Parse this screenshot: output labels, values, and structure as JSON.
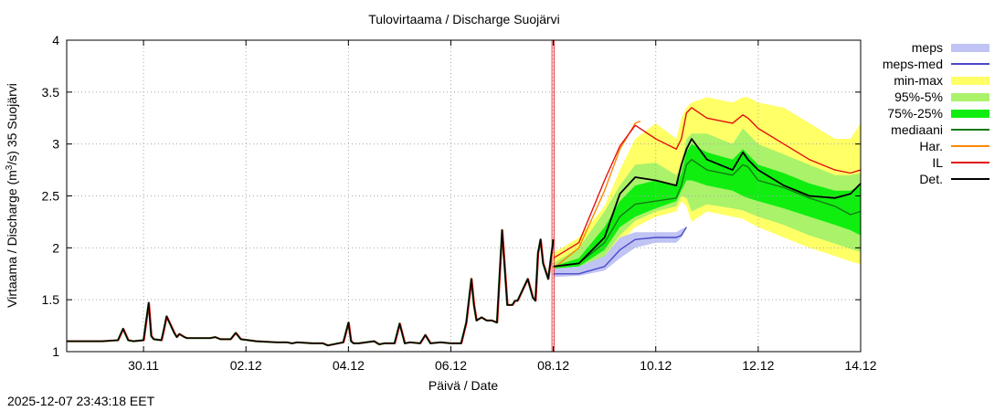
{
  "timestamp": "2025-12-07 23:43:18 EET",
  "chart_data": {
    "type": "area",
    "title": "Tulovirtaama / Discharge  Suojärvi",
    "xlabel": "Päivä / Date",
    "ylabel_parts": [
      "Virtaama / Discharge (m",
      "3",
      "/s)  35 Suojärvi"
    ],
    "x_range": [
      -1.5,
      14.0
    ],
    "ylim": [
      1,
      4
    ],
    "y_ticks": [
      1,
      1.5,
      2,
      2.5,
      3,
      3.5,
      4
    ],
    "y_tick_labels": [
      "1",
      "1.5",
      "2",
      "2.5",
      "3",
      "3.5",
      "4"
    ],
    "x_ticks": [
      0,
      2,
      4,
      6,
      8,
      10,
      12,
      14
    ],
    "x_tick_labels": [
      "30.11",
      "02.12",
      "04.12",
      "06.12",
      "08.12",
      "10.12",
      "12.12",
      "14.12"
    ],
    "forecast_start_day": 8.0,
    "grid": true,
    "legend_position": "right",
    "legend": [
      {
        "label": "meps",
        "kind": "band",
        "color": "#c0c4f4"
      },
      {
        "label": "meps-med",
        "kind": "line",
        "color": "#4b48c8"
      },
      {
        "label": "min-max",
        "kind": "band",
        "color": "#ffff66"
      },
      {
        "label": "95%-5%",
        "kind": "band",
        "color": "#aaf26a"
      },
      {
        "label": "75%-25%",
        "kind": "band",
        "color": "#10ee10"
      },
      {
        "label": "mediaani",
        "kind": "line",
        "color": "#157a15"
      },
      {
        "label": "Har.",
        "kind": "line",
        "color": "#ff8800"
      },
      {
        "label": "IL",
        "kind": "line",
        "color": "#e01010"
      },
      {
        "label": "Det.",
        "kind": "line",
        "color": "#000000"
      }
    ],
    "observed": {
      "name": "Det.",
      "x": [
        -1.5,
        -0.8,
        -0.5,
        -0.4,
        -0.3,
        -0.2,
        0.0,
        0.1,
        0.15,
        0.2,
        0.35,
        0.4,
        0.45,
        0.6,
        0.65,
        0.7,
        0.8,
        0.85,
        0.9,
        1.0,
        1.3,
        1.4,
        1.5,
        1.7,
        1.8,
        1.9,
        2.2,
        2.6,
        2.8,
        2.9,
        3.0,
        3.3,
        3.5,
        3.6,
        3.9,
        4.0,
        4.05,
        4.1,
        4.2,
        4.5,
        4.6,
        4.7,
        4.9,
        5.0,
        5.1,
        5.2,
        5.4,
        5.5,
        5.6,
        5.8,
        6.0,
        6.2,
        6.3,
        6.4,
        6.45,
        6.5,
        6.6,
        6.7,
        6.8,
        6.9,
        7.0,
        7.1,
        7.2,
        7.25,
        7.3,
        7.5,
        7.6,
        7.65,
        7.7,
        7.75,
        7.8,
        7.9,
        8.0
      ],
      "y": [
        1.1,
        1.1,
        1.11,
        1.22,
        1.11,
        1.1,
        1.11,
        1.47,
        1.15,
        1.12,
        1.11,
        1.22,
        1.34,
        1.18,
        1.14,
        1.17,
        1.14,
        1.13,
        1.13,
        1.13,
        1.13,
        1.14,
        1.12,
        1.12,
        1.18,
        1.12,
        1.1,
        1.09,
        1.09,
        1.08,
        1.09,
        1.08,
        1.08,
        1.06,
        1.09,
        1.28,
        1.1,
        1.08,
        1.08,
        1.1,
        1.07,
        1.08,
        1.08,
        1.27,
        1.08,
        1.09,
        1.08,
        1.16,
        1.08,
        1.09,
        1.08,
        1.08,
        1.28,
        1.7,
        1.45,
        1.3,
        1.33,
        1.3,
        1.3,
        1.28,
        2.17,
        1.45,
        1.45,
        1.49,
        1.49,
        1.7,
        1.52,
        1.49,
        1.95,
        2.08,
        1.85,
        1.7,
        2.08
      ]
    },
    "forecast_x": [
      8.0,
      8.5,
      9.0,
      9.3,
      9.6,
      10.0,
      10.4,
      10.5,
      10.6,
      10.7,
      11.0,
      11.5,
      11.7,
      11.8,
      12.0,
      12.5,
      13.0,
      13.5,
      13.8,
      14.0
    ],
    "bands": [
      {
        "name": "min-max",
        "color": "#ffff66",
        "lower": [
          1.85,
          1.78,
          1.88,
          2.05,
          2.2,
          2.3,
          2.35,
          2.45,
          2.4,
          2.25,
          2.35,
          2.3,
          2.28,
          2.25,
          2.2,
          2.1,
          2.0,
          1.92,
          1.87,
          1.84
        ],
        "upper": [
          1.95,
          2.1,
          2.4,
          2.75,
          3.05,
          3.2,
          3.05,
          3.25,
          3.35,
          3.4,
          3.45,
          3.4,
          3.45,
          3.45,
          3.4,
          3.35,
          3.2,
          3.05,
          3.05,
          3.2
        ]
      },
      {
        "name": "95%-5%",
        "color": "#aaf26a",
        "lower": [
          1.8,
          1.8,
          1.92,
          2.12,
          2.26,
          2.35,
          2.4,
          2.5,
          2.48,
          2.35,
          2.42,
          2.38,
          2.36,
          2.34,
          2.3,
          2.22,
          2.12,
          2.04,
          1.99,
          1.96
        ],
        "upper": [
          1.85,
          2.0,
          2.35,
          2.6,
          2.8,
          2.82,
          2.7,
          2.8,
          3.05,
          3.1,
          3.1,
          3.0,
          3.15,
          3.1,
          3.0,
          2.9,
          2.8,
          2.7,
          2.7,
          2.72
        ]
      },
      {
        "name": "75%-25%",
        "color": "#10ee10",
        "lower": [
          1.8,
          1.82,
          1.98,
          2.2,
          2.3,
          2.38,
          2.45,
          2.55,
          2.65,
          2.65,
          2.6,
          2.55,
          2.5,
          2.48,
          2.45,
          2.38,
          2.3,
          2.22,
          2.17,
          2.12
        ],
        "upper": [
          1.82,
          1.9,
          2.2,
          2.45,
          2.6,
          2.65,
          2.6,
          2.72,
          2.92,
          3.0,
          2.92,
          2.85,
          2.95,
          2.9,
          2.8,
          2.72,
          2.62,
          2.55,
          2.55,
          2.6
        ]
      },
      {
        "name": "meps",
        "color": "#c0c4f4",
        "x": [
          8.0,
          8.5,
          9.0,
          9.3,
          9.6,
          10.0,
          10.4,
          10.5,
          10.6
        ],
        "lower": [
          1.72,
          1.73,
          1.78,
          1.9,
          2.0,
          2.05,
          2.05,
          2.1,
          2.2
        ],
        "upper": [
          1.8,
          1.82,
          1.92,
          2.1,
          2.15,
          2.15,
          2.15,
          2.18,
          2.2
        ]
      }
    ],
    "series": [
      {
        "name": "mediaani",
        "color": "#157a15",
        "values": [
          1.82,
          1.85,
          2.05,
          2.3,
          2.42,
          2.45,
          2.48,
          2.6,
          2.8,
          2.85,
          2.75,
          2.7,
          2.8,
          2.78,
          2.65,
          2.58,
          2.48,
          2.4,
          2.32,
          2.35
        ]
      },
      {
        "name": "meps-med",
        "color": "#4b48c8",
        "x": [
          8.0,
          8.5,
          9.0,
          9.3,
          9.6,
          10.0,
          10.4,
          10.5,
          10.6
        ],
        "values": [
          1.75,
          1.75,
          1.82,
          1.98,
          2.08,
          2.1,
          2.1,
          2.12,
          2.2
        ]
      },
      {
        "name": "Har.",
        "color": "#ff8800",
        "x": [
          8.0,
          8.5,
          9.0,
          9.3,
          9.6,
          9.7
        ],
        "values": [
          1.8,
          2.0,
          2.55,
          2.95,
          3.2,
          3.22
        ]
      },
      {
        "name": "IL",
        "color": "#e01010",
        "values": [
          1.9,
          2.05,
          2.65,
          2.98,
          3.18,
          3.05,
          2.95,
          3.05,
          3.3,
          3.35,
          3.25,
          3.2,
          3.28,
          3.25,
          3.15,
          3.0,
          2.85,
          2.75,
          2.72,
          2.75
        ]
      },
      {
        "name": "Det.",
        "color": "#000000",
        "values": [
          1.82,
          1.85,
          2.1,
          2.52,
          2.68,
          2.65,
          2.6,
          2.8,
          2.95,
          3.05,
          2.85,
          2.75,
          2.92,
          2.85,
          2.75,
          2.6,
          2.5,
          2.48,
          2.52,
          2.62
        ]
      }
    ]
  }
}
